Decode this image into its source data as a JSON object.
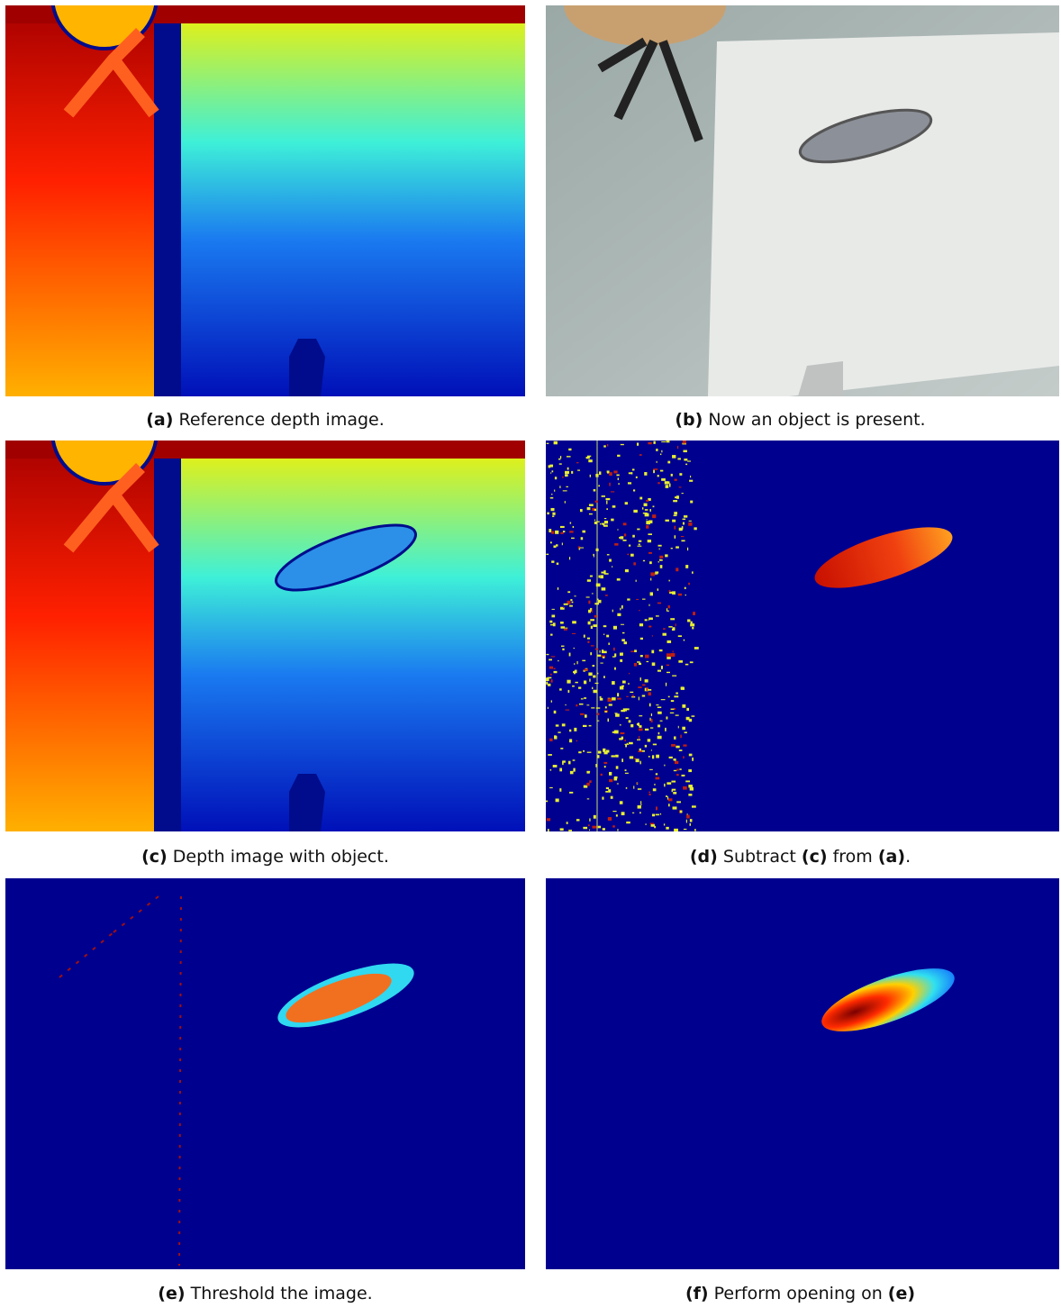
{
  "panels": [
    {
      "label": "(a)",
      "text": "Reference depth image."
    },
    {
      "label": "(b)",
      "text": "Now an object is present."
    },
    {
      "label": "(c)",
      "text": "Depth image with object."
    },
    {
      "label": "(d)",
      "text": "Subtract",
      "ref1": "(c)",
      "text2": "from",
      "ref2": "(a)",
      "end": "."
    },
    {
      "label": "(e)",
      "text": "Threshold the image."
    },
    {
      "label": "(f)",
      "text": "Perform opening on",
      "ref1": "(e)"
    }
  ]
}
